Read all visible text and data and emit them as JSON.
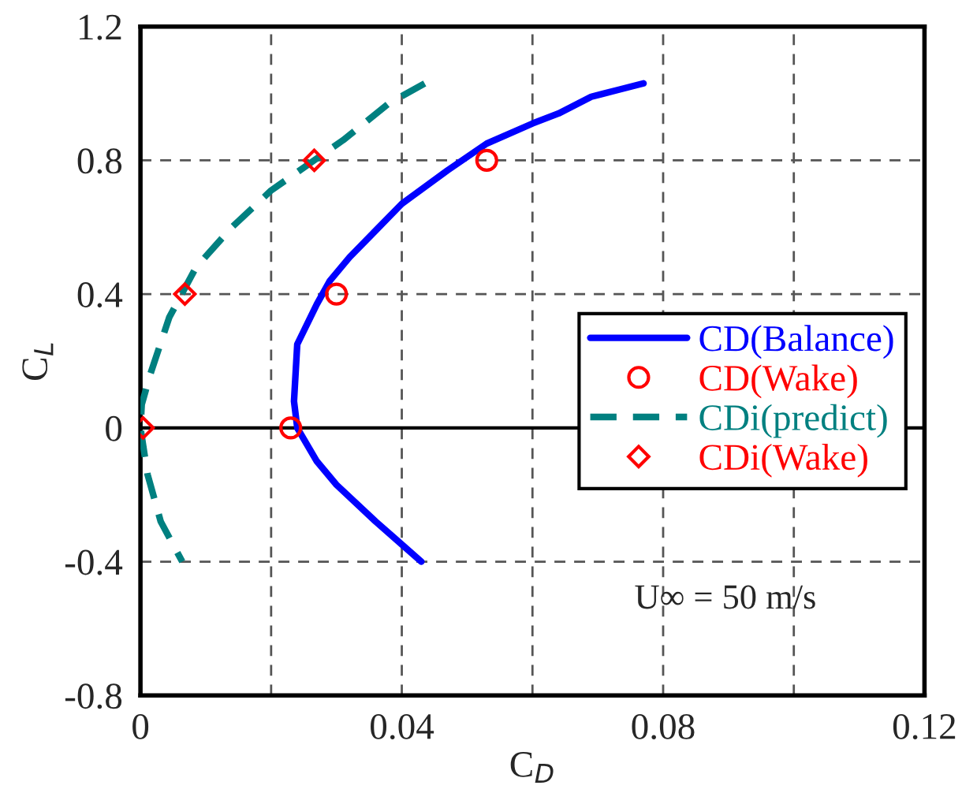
{
  "chart_data": {
    "type": "line",
    "xlabel": "C$_{D}$",
    "ylabel": "C$_{L}$",
    "xlim": [
      0,
      0.12
    ],
    "xticks": [
      0,
      {
        "value": 0.02,
        "label": null
      },
      0.04,
      {
        "value": 0.06,
        "label": null
      },
      0.08,
      {
        "value": 0.1,
        "label": null
      },
      0.12
    ],
    "ylim": [
      -0.8,
      1.2
    ],
    "yticks": [
      -0.8,
      -0.4,
      0,
      0.4,
      0.8,
      1.2
    ],
    "grid": true,
    "legend": "right",
    "ref_lines": [
      {
        "axis": "y",
        "value": 0,
        "color": "#000000",
        "line_style": "solid"
      }
    ],
    "annotations": [
      "U∞ = 50 m/s"
    ],
    "series": [
      {
        "name": "CD(Balance)",
        "type": "line",
        "color": "#0000ff",
        "line_style": "solid",
        "marker": "none",
        "x": [
          0.077,
          0.073,
          0.069,
          0.064,
          0.06,
          0.053,
          0.047,
          0.04,
          0.036,
          0.032,
          0.029,
          0.027,
          0.024,
          0.0235,
          0.024,
          0.027,
          0.03,
          0.036,
          0.043
        ],
        "values": [
          1.03,
          1.01,
          0.99,
          0.94,
          0.91,
          0.85,
          0.77,
          0.67,
          0.59,
          0.51,
          0.44,
          0.37,
          0.25,
          0.08,
          0.0,
          -0.1,
          -0.17,
          -0.28,
          -0.4
        ]
      },
      {
        "name": "CD(Wake)",
        "type": "scatter",
        "color": "#ff0000",
        "marker": "circle",
        "x": [
          0.053,
          0.03,
          0.023
        ],
        "values": [
          0.8,
          0.4,
          0.0
        ]
      },
      {
        "name": "CDi(predict)",
        "type": "line",
        "color": "#008080",
        "line_style": "dashed",
        "marker": "none",
        "x": [
          0.0435,
          0.038,
          0.031,
          0.02,
          0.014,
          0.0085,
          0.0044,
          0.0015,
          0.0002,
          0.0,
          0.0011,
          0.0031,
          0.0064
        ],
        "values": [
          1.03,
          0.97,
          0.86,
          0.71,
          0.6,
          0.48,
          0.33,
          0.16,
          0.07,
          0.0,
          -0.14,
          -0.28,
          -0.4
        ]
      },
      {
        "name": "CDi(Wake)",
        "type": "scatter",
        "color": "#ff0000",
        "marker": "diamond",
        "x": [
          0.0266,
          0.0068,
          0.0004
        ],
        "values": [
          0.8,
          0.4,
          0.0
        ]
      }
    ]
  }
}
